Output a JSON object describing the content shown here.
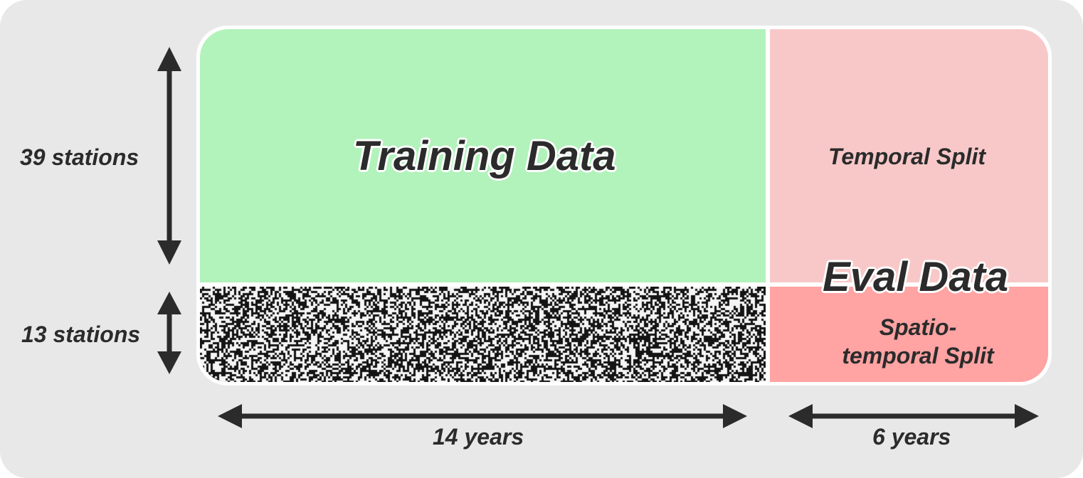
{
  "labels": {
    "training": "Training Data",
    "eval": "Eval Data",
    "temporal_split": "Temporal Split",
    "spatio_line1": "Spatio-",
    "spatio_line2": "temporal Split",
    "stations_top": "39 stations",
    "stations_bottom": "13 stations",
    "years_left": "14 years",
    "years_right": "6 years"
  },
  "colors": {
    "background": "#e8e8e8",
    "training": "#b2f2bb",
    "temporal_split": "#f8c8c8",
    "spatio_temporal_split": "#ffa3a3",
    "text": "#2b2b2b"
  }
}
